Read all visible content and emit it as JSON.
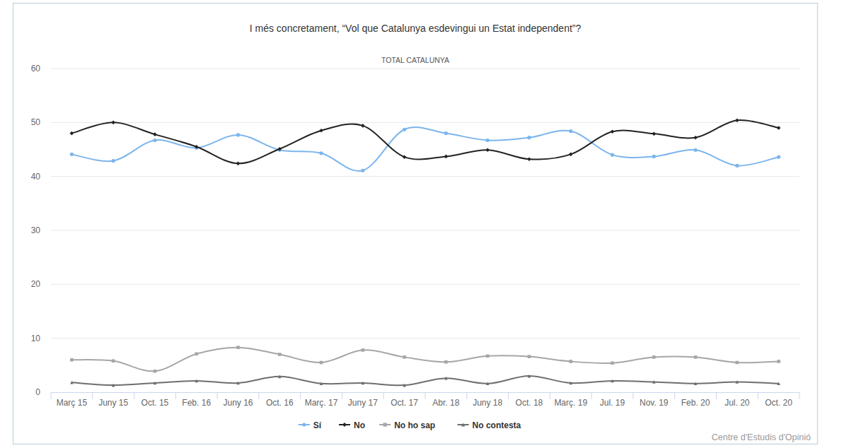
{
  "chart_data": {
    "type": "line",
    "title": "I més concretament, “Vol que Catalunya esdevingui un Estat independent”?",
    "subtitle": "TOTAL CATALUNYA",
    "source": "Centre d'Estudis d'Opinió",
    "categories": [
      "Març 15",
      "Juny 15",
      "Oct. 15",
      "Feb. 16",
      "Juny 16",
      "Oct. 16",
      "Març. 17",
      "Juny 17",
      "Oct. 17",
      "Abr. 18",
      "Juny 18",
      "Oct. 18",
      "Març. 19",
      "Jul. 19",
      "Nov. 19",
      "Feb. 20",
      "Jul. 20",
      "Oct. 20"
    ],
    "series": [
      {
        "name": "Sí",
        "color": "#7cb5ec",
        "marker": "circle",
        "values": [
          44.1,
          42.9,
          46.7,
          45.3,
          47.7,
          44.9,
          44.3,
          41.1,
          48.7,
          48.0,
          46.7,
          47.2,
          48.4,
          44.0,
          43.7,
          44.9,
          42.0,
          43.6
        ]
      },
      {
        "name": "No",
        "color": "#222222",
        "marker": "diamond",
        "values": [
          48.0,
          50.0,
          47.8,
          45.5,
          42.4,
          45.1,
          48.5,
          49.4,
          43.6,
          43.7,
          44.9,
          43.2,
          44.1,
          48.3,
          47.9,
          47.2,
          50.4,
          49.0
        ]
      },
      {
        "name": "No ho sap",
        "color": "#a6a6a6",
        "marker": "square",
        "values": [
          6.0,
          5.8,
          3.9,
          7.1,
          8.3,
          7.0,
          5.5,
          7.8,
          6.5,
          5.6,
          6.7,
          6.6,
          5.7,
          5.4,
          6.5,
          6.5,
          5.5,
          5.7
        ]
      },
      {
        "name": "No contesta",
        "color": "#6e6e6e",
        "marker": "triangle",
        "values": [
          1.8,
          1.3,
          1.7,
          2.1,
          1.7,
          2.9,
          1.6,
          1.7,
          1.3,
          2.6,
          1.6,
          3.0,
          1.7,
          2.1,
          1.9,
          1.6,
          1.9,
          1.6
        ]
      }
    ],
    "ylim": [
      0,
      60
    ],
    "yticks": [
      0,
      10,
      20,
      30,
      40,
      50,
      60
    ],
    "grid": true,
    "legend": "bottom"
  }
}
